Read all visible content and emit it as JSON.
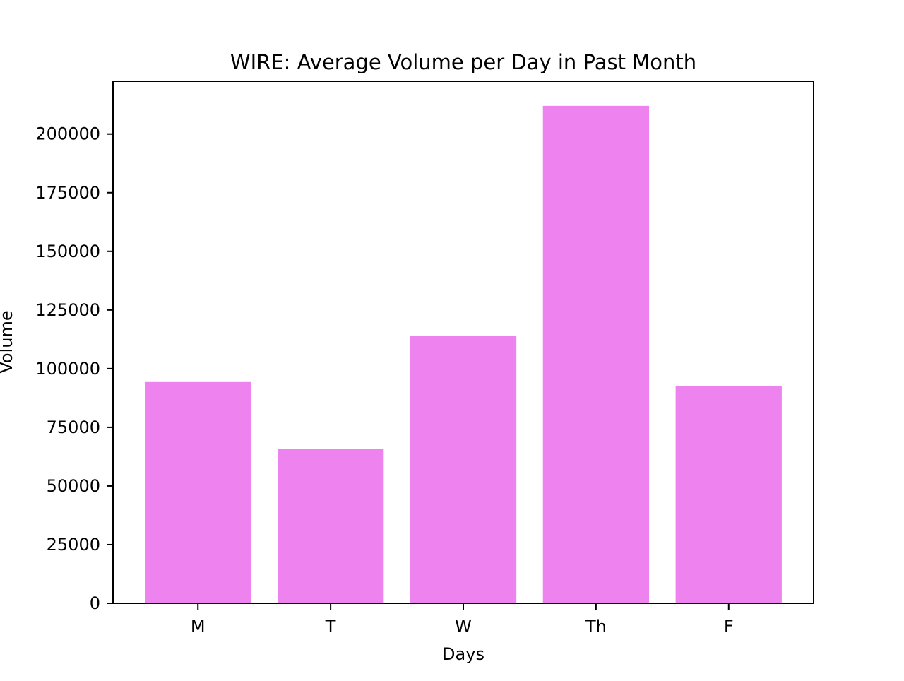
{
  "chart_data": {
    "type": "bar",
    "title": "WIRE: Average Volume per Day in Past Month",
    "xlabel": "Days",
    "ylabel": "Volume",
    "categories": [
      "M",
      "T",
      "W",
      "Th",
      "F"
    ],
    "values": [
      94300,
      65700,
      114000,
      212000,
      92500
    ],
    "ylim": [
      0,
      222500
    ],
    "yticks": [
      0,
      25000,
      50000,
      75000,
      100000,
      125000,
      150000,
      175000,
      200000
    ],
    "ytick_labels": [
      "0",
      "25000",
      "50000",
      "75000",
      "100000",
      "125000",
      "150000",
      "175000",
      "200000"
    ],
    "grid": false,
    "legend": "none",
    "colors": {
      "bar": "#ee82ee",
      "axis": "#000000",
      "background": "#ffffff"
    }
  }
}
